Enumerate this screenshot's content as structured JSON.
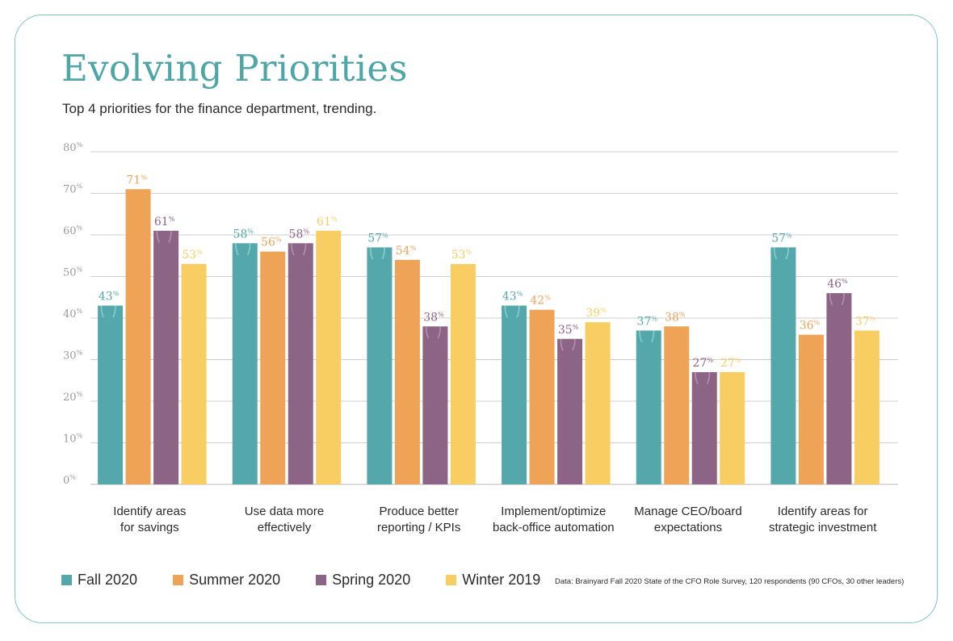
{
  "title": "Evolving Priorities",
  "subtitle": "Top 4 priorities for the finance department, trending.",
  "source": "Data: Brainyard Fall 2020 State of the CFO Role Survey, 120 respondents (90 CFOs, 30 other leaders)",
  "colors": {
    "accent": "#4fa6a8",
    "frame": "#7cc5c8",
    "fall_2020": "#54a8ab",
    "summer_2020": "#eea357",
    "spring_2020": "#8c6485",
    "winter_2019": "#f8cd62"
  },
  "chart_data": {
    "type": "bar",
    "title": "Evolving Priorities",
    "subtitle": "Top 4 priorities for the finance department, trending.",
    "xlabel": "",
    "ylabel": "",
    "ylim": [
      0,
      80
    ],
    "yticks": [
      {
        "value": 0,
        "label": "0"
      },
      {
        "value": 10,
        "label": "10"
      },
      {
        "value": 20,
        "label": "20"
      },
      {
        "value": 30,
        "label": "30"
      },
      {
        "value": 40,
        "label": "40"
      },
      {
        "value": 50,
        "label": "50"
      },
      {
        "value": 60,
        "label": "60"
      },
      {
        "value": 70,
        "label": "70"
      },
      {
        "value": 80,
        "label": "80"
      }
    ],
    "value_suffix": "%",
    "grid": true,
    "legend_position": "bottom-left",
    "categories": [
      [
        "Identify areas",
        "for savings"
      ],
      [
        "Use data more",
        "effectively"
      ],
      [
        "Produce better",
        "reporting / KPIs"
      ],
      [
        "Implement/optimize",
        "back-office automation"
      ],
      [
        "Manage CEO/board",
        "expectations"
      ],
      [
        "Identify areas for",
        "strategic investment"
      ]
    ],
    "series": [
      {
        "name": "Fall 2020",
        "color": "#54a8ab",
        "values": [
          43,
          58,
          57,
          43,
          37,
          57
        ]
      },
      {
        "name": "Summer 2020",
        "color": "#eea357",
        "values": [
          71,
          56,
          54,
          42,
          38,
          36
        ]
      },
      {
        "name": "Spring 2020",
        "color": "#8c6485",
        "values": [
          61,
          58,
          38,
          35,
          27,
          46
        ]
      },
      {
        "name": "Winter 2019",
        "color": "#f8cd62",
        "values": [
          53,
          61,
          53,
          39,
          27,
          37
        ]
      }
    ]
  },
  "legend": [
    {
      "label": "Fall 2020",
      "color": "#54a8ab"
    },
    {
      "label": "Summer 2020",
      "color": "#eea357"
    },
    {
      "label": "Spring 2020",
      "color": "#8c6485"
    },
    {
      "label": "Winter 2019",
      "color": "#f8cd62"
    }
  ]
}
